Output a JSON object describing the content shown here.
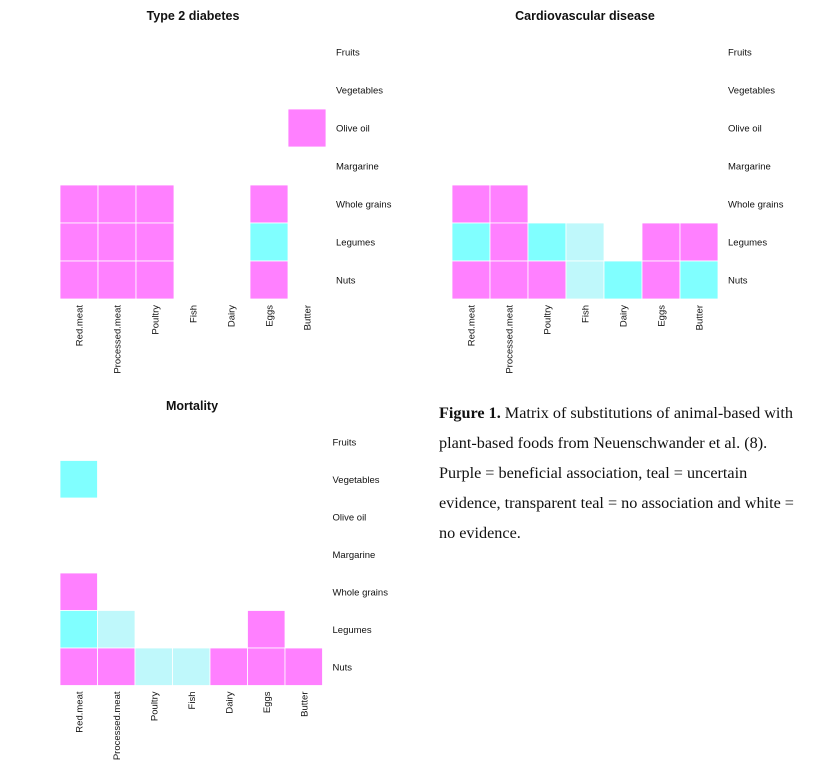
{
  "chart_data": [
    {
      "type": "heatmap",
      "title": "Type 2 diabetes",
      "columns": [
        "Red.meat",
        "Processed.meat",
        "Poultry",
        "Fish",
        "Dairy",
        "Eggs",
        "Butter"
      ],
      "rows": [
        "Fruits",
        "Vegetables",
        "Olive oil",
        "Margarine",
        "Whole grains",
        "Legumes",
        "Nuts"
      ],
      "cells": [
        [
          null,
          null,
          null,
          null,
          null,
          null,
          null
        ],
        [
          null,
          null,
          null,
          null,
          null,
          null,
          null
        ],
        [
          null,
          null,
          null,
          null,
          null,
          null,
          "beneficial"
        ],
        [
          null,
          null,
          null,
          null,
          null,
          null,
          null
        ],
        [
          "beneficial",
          "beneficial",
          "beneficial",
          null,
          null,
          "beneficial",
          null
        ],
        [
          "beneficial",
          "beneficial",
          "beneficial",
          null,
          null,
          "uncertain",
          null
        ],
        [
          "beneficial",
          "beneficial",
          "beneficial",
          null,
          null,
          "beneficial",
          null
        ]
      ]
    },
    {
      "type": "heatmap",
      "title": "Cardiovascular disease",
      "columns": [
        "Red.meat",
        "Processed.meat",
        "Poultry",
        "Fish",
        "Dairy",
        "Eggs",
        "Butter"
      ],
      "rows": [
        "Fruits",
        "Vegetables",
        "Olive oil",
        "Margarine",
        "Whole grains",
        "Legumes",
        "Nuts"
      ],
      "cells": [
        [
          null,
          null,
          null,
          null,
          null,
          null,
          null
        ],
        [
          null,
          null,
          null,
          null,
          null,
          null,
          null
        ],
        [
          null,
          null,
          null,
          null,
          null,
          null,
          null
        ],
        [
          null,
          null,
          null,
          null,
          null,
          null,
          null
        ],
        [
          "beneficial",
          "beneficial",
          null,
          null,
          null,
          null,
          null
        ],
        [
          "uncertain",
          "beneficial",
          "uncertain",
          "no_association",
          null,
          "beneficial",
          "beneficial"
        ],
        [
          "beneficial",
          "beneficial",
          "beneficial",
          "no_association",
          "uncertain",
          "beneficial",
          "uncertain"
        ]
      ]
    },
    {
      "type": "heatmap",
      "title": "Mortality",
      "columns": [
        "Red.meat",
        "Processed.meat",
        "Poultry",
        "Fish",
        "Dairy",
        "Eggs",
        "Butter"
      ],
      "rows": [
        "Fruits",
        "Vegetables",
        "Olive oil",
        "Margarine",
        "Whole grains",
        "Legumes",
        "Nuts"
      ],
      "cells": [
        [
          null,
          null,
          null,
          null,
          null,
          null,
          null
        ],
        [
          "uncertain",
          null,
          null,
          null,
          null,
          null,
          null
        ],
        [
          null,
          null,
          null,
          null,
          null,
          null,
          null
        ],
        [
          null,
          null,
          null,
          null,
          null,
          null,
          null
        ],
        [
          "beneficial",
          null,
          null,
          null,
          null,
          null,
          null
        ],
        [
          "uncertain",
          "no_association",
          null,
          null,
          null,
          "beneficial",
          null
        ],
        [
          "beneficial",
          "beneficial",
          "no_association",
          "no_association",
          "beneficial",
          "beneficial",
          "beneficial"
        ]
      ]
    }
  ],
  "colors": {
    "beneficial": "#ff80ff",
    "uncertain": "#80ffff",
    "no_association": "#bff8fb",
    "grid": "#ffffff"
  },
  "caption": {
    "label": "Figure 1.",
    "text": " Matrix of substitutions of animal-based with plant-based foods from Neuenschwander et al. (8). Purple = beneficial association, teal = uncertain evidence, transparent teal = no association and white = no evidence."
  }
}
